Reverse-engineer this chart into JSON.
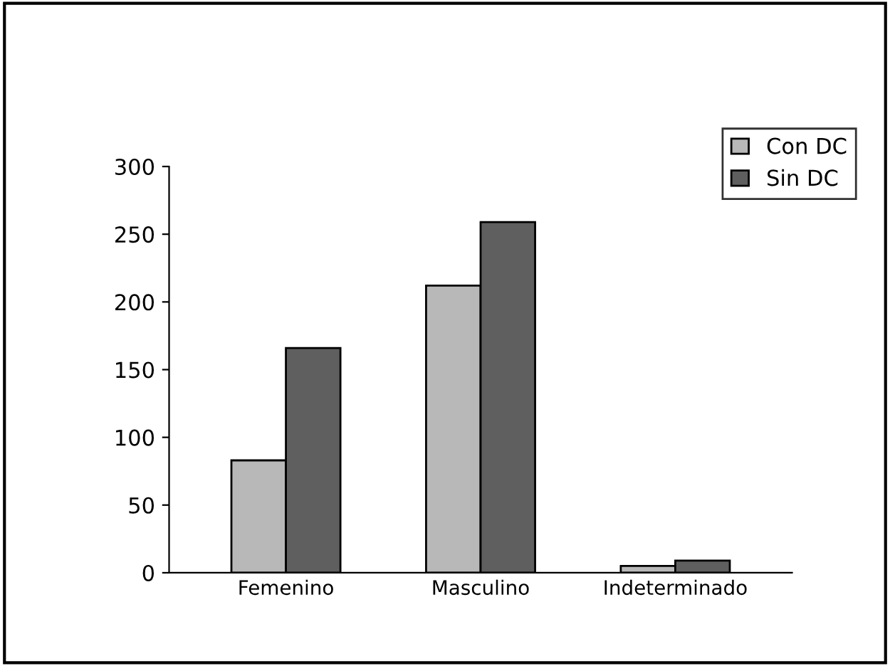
{
  "chart_data": {
    "type": "bar",
    "categories": [
      "Femenino",
      "Masculino",
      "Indeterminado"
    ],
    "series": [
      {
        "name": "Con DC",
        "color": "#b8b8b8",
        "values": [
          83,
          212,
          5
        ]
      },
      {
        "name": "Sin DC",
        "color": "#5f5f5f",
        "values": [
          166,
          259,
          9
        ]
      }
    ],
    "ylim": [
      0,
      300
    ],
    "yticks": [
      0,
      50,
      100,
      150,
      200,
      250,
      300
    ],
    "grid": false,
    "legend": "top right"
  }
}
